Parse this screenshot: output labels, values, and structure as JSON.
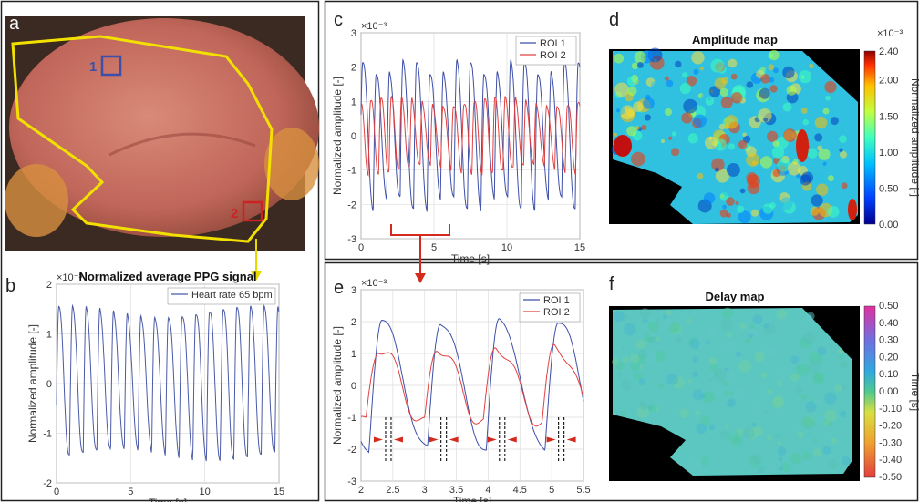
{
  "panels": {
    "a": {
      "label": "a",
      "roi1": "1",
      "roi2": "2"
    },
    "b": {
      "label": "b"
    },
    "c": {
      "label": "c"
    },
    "d": {
      "label": "d"
    },
    "e": {
      "label": "e"
    },
    "f": {
      "label": "f"
    }
  },
  "colors": {
    "roi1": "#3d4fa8",
    "roi2": "#e04040",
    "ppg": "#4a5aa8",
    "outline": "#f2e000",
    "arrow": "#d42a1e"
  },
  "chart_data": [
    {
      "id": "b",
      "type": "line",
      "title": "Normalized average PPG signal",
      "xlabel": "Time [s]",
      "ylabel": "Normalized amplitude [-]",
      "exponent": "×10⁻³",
      "xlim": [
        0,
        15
      ],
      "ylim": [
        -2,
        2
      ],
      "xticks": [
        0,
        5,
        10,
        15
      ],
      "yticks": [
        -2,
        -1,
        0,
        1,
        2
      ],
      "grid": true,
      "legend_position": "top-right",
      "series": [
        {
          "name": "Heart rate 65 bpm",
          "frequency_hz": 1.083,
          "amplitude": 1.45,
          "x_range": [
            0,
            15
          ]
        }
      ]
    },
    {
      "id": "c",
      "type": "line",
      "xlabel": "Time [s]",
      "ylabel": "Normalized amplitude [-]",
      "exponent": "×10⁻³",
      "xlim": [
        0,
        15
      ],
      "ylim": [
        -3,
        3
      ],
      "xticks": [
        0,
        5,
        10,
        15
      ],
      "yticks": [
        -3,
        -2,
        -1,
        0,
        1,
        2,
        3
      ],
      "grid": true,
      "legend_position": "top-right",
      "series": [
        {
          "name": "ROI 1",
          "frequency_hz": 1.083,
          "amplitude": 2.0
        },
        {
          "name": "ROI 2",
          "frequency_hz": 1.083,
          "amplitude": 1.0
        }
      ],
      "highlight_range": [
        2,
        6
      ]
    },
    {
      "id": "d",
      "type": "heatmap",
      "title": "Amplitude map",
      "colorbar_label": "Normalized amplitude [-]",
      "colorbar_exponent": "×10⁻³",
      "colorbar_ticks": [
        "0.00",
        "0.50",
        "1.00",
        "1.50",
        "2.00",
        "2.40"
      ],
      "colorbar_range": [
        0,
        2.4
      ]
    },
    {
      "id": "e",
      "type": "line",
      "xlabel": "Time [s]",
      "ylabel": "Normalized amplitude [-]",
      "exponent": "×10⁻³",
      "xlim": [
        2,
        5.5
      ],
      "ylim": [
        -3,
        3
      ],
      "xticks": [
        "2",
        "2.5",
        "3",
        "3.5",
        "4",
        "4.5",
        "5",
        "5.5"
      ],
      "yticks": [
        -3,
        -2,
        -1,
        0,
        1,
        2,
        3
      ],
      "grid": true,
      "legend_position": "top-right",
      "series": [
        {
          "name": "ROI 1",
          "frequency_hz": 1.083,
          "amplitude": 2.0
        },
        {
          "name": "ROI 2",
          "frequency_hz": 1.083,
          "amplitude": 1.2
        }
      ],
      "delay_markers_x": [
        2.43,
        3.3,
        4.22,
        5.15
      ]
    },
    {
      "id": "f",
      "type": "heatmap",
      "title": "Delay map",
      "colorbar_label": "Time [s]",
      "colorbar_ticks": [
        "0.50",
        "0.40",
        "0.30",
        "0.20",
        "0.10",
        "0.00",
        "-0.10",
        "-0.20",
        "-0.30",
        "-0.40",
        "-0.50"
      ],
      "colorbar_range": [
        -0.5,
        0.5
      ]
    }
  ]
}
